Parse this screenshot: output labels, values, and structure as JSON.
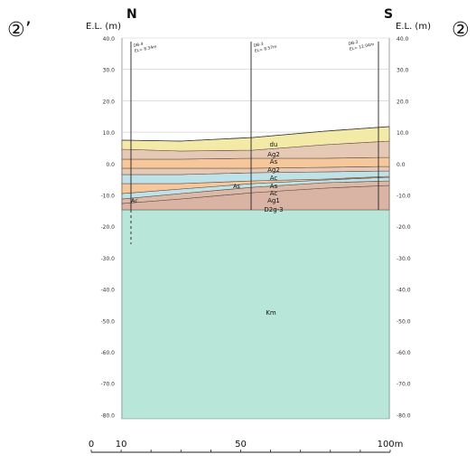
{
  "section": {
    "left_marker": "②’",
    "right_marker": "②",
    "left_dir": "N",
    "right_dir": "S",
    "left_elev_label": "E.L. (m)",
    "right_elev_label": "E.L. (m)"
  },
  "elevation_ticks": [
    "40.0",
    "30.0",
    "20.0",
    "10.0",
    "0.0",
    "-10.0",
    "-20.0",
    "-30.0",
    "-40.0",
    "-50.0",
    "-60.0",
    "-70.0",
    "-80.0"
  ],
  "boreholes": [
    {
      "id": "br-left",
      "label": "DB-4\nEL= 8.34m"
    },
    {
      "id": "br-mid",
      "label": "DB-3\nEL= 8.57m"
    },
    {
      "id": "br-right",
      "label": "DB-2\nEL= 12.04m"
    }
  ],
  "layers": [
    {
      "name": "du",
      "color": "#f3eaa8"
    },
    {
      "name": "Ag2",
      "color": "#e6c9b4"
    },
    {
      "name": "As",
      "color": "#f6c79a"
    },
    {
      "name": "Ag2",
      "color": "#e6c9b4"
    },
    {
      "name": "Ac",
      "color": "#bfe2e8"
    },
    {
      "name": "As",
      "color": "#f6c79a"
    },
    {
      "name": "Ac",
      "color": "#bfe2e8"
    },
    {
      "name": "Ag1",
      "color": "#dcb8a6"
    },
    {
      "name": "D2g-3",
      "color": "#d9b3a3"
    },
    {
      "name": "Km",
      "color": "#b8e6d8"
    }
  ],
  "layer_labels_side": [
    "As",
    "Ac"
  ],
  "scale": {
    "ticks": [
      "0",
      "10",
      "50",
      "100m"
    ]
  }
}
